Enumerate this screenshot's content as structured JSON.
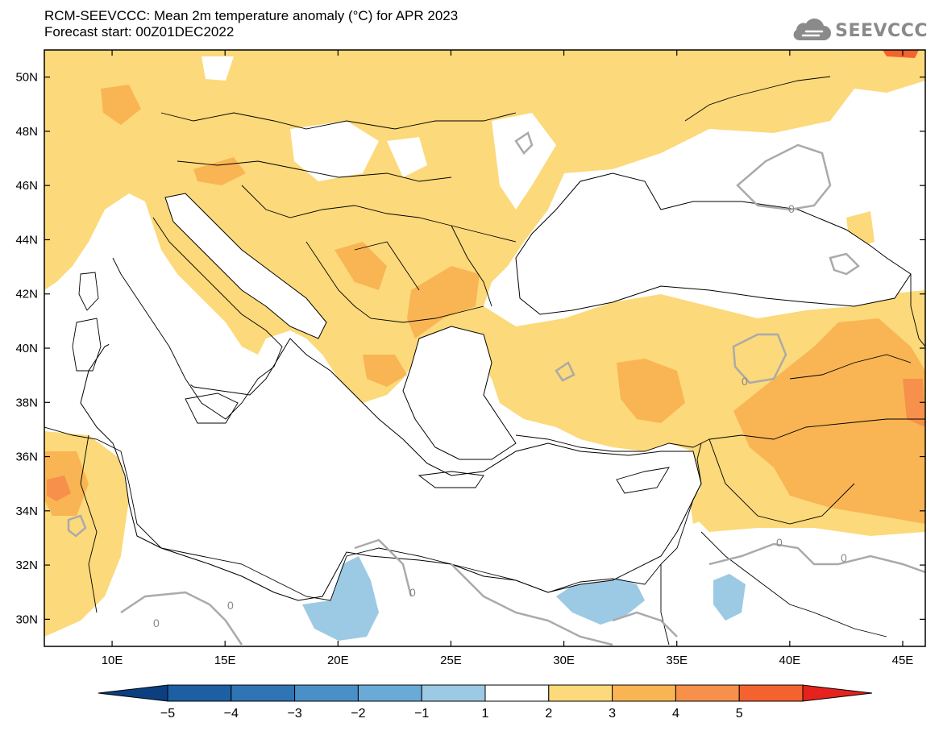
{
  "header": {
    "title_line1": "RCM-SEEVCCC: Mean 2m temperature anomaly (°C) for APR 2023",
    "title_line2": "Forecast start: 00Z01DEC2022"
  },
  "logo": {
    "text": "SEEVCCC",
    "icon": "cloud-icon",
    "color": "#8a8a8a"
  },
  "map": {
    "lon_range": [
      7,
      46
    ],
    "lat_range": [
      29,
      51
    ],
    "lon_ticks": [
      {
        "value": 10,
        "label": "10E"
      },
      {
        "value": 15,
        "label": "15E"
      },
      {
        "value": 20,
        "label": "20E"
      },
      {
        "value": 25,
        "label": "25E"
      },
      {
        "value": 30,
        "label": "30E"
      },
      {
        "value": 35,
        "label": "35E"
      },
      {
        "value": 40,
        "label": "40E"
      },
      {
        "value": 45,
        "label": "45E"
      }
    ],
    "lat_ticks": [
      {
        "value": 30,
        "label": "30N"
      },
      {
        "value": 32,
        "label": "32N"
      },
      {
        "value": 34,
        "label": "34N"
      },
      {
        "value": 36,
        "label": "36N"
      },
      {
        "value": 38,
        "label": "38N"
      },
      {
        "value": 40,
        "label": "40N"
      },
      {
        "value": 42,
        "label": "42N"
      },
      {
        "value": 44,
        "label": "44N"
      },
      {
        "value": 46,
        "label": "46N"
      },
      {
        "value": 48,
        "label": "48N"
      },
      {
        "value": 50,
        "label": "50N"
      }
    ],
    "zero_contour_labels": [
      "0",
      "0",
      "0",
      "0",
      "0",
      "0",
      "0"
    ]
  },
  "colorbar": {
    "labels": [
      "−5",
      "−4",
      "−3",
      "−2",
      "−1",
      "1",
      "2",
      "3",
      "4",
      "5"
    ],
    "bins": [
      {
        "color": "#1d5fa3"
      },
      {
        "color": "#2f74b5"
      },
      {
        "color": "#4a90c8"
      },
      {
        "color": "#6aaad6"
      },
      {
        "color": "#9ccae4"
      },
      {
        "color": "#ffffff"
      },
      {
        "color": "#fcd97a"
      },
      {
        "color": "#f9b553"
      },
      {
        "color": "#f6904a"
      },
      {
        "color": "#f4622f"
      }
    ],
    "low_extend_color": "#0c3f80",
    "high_extend_color": "#e5221d"
  }
}
